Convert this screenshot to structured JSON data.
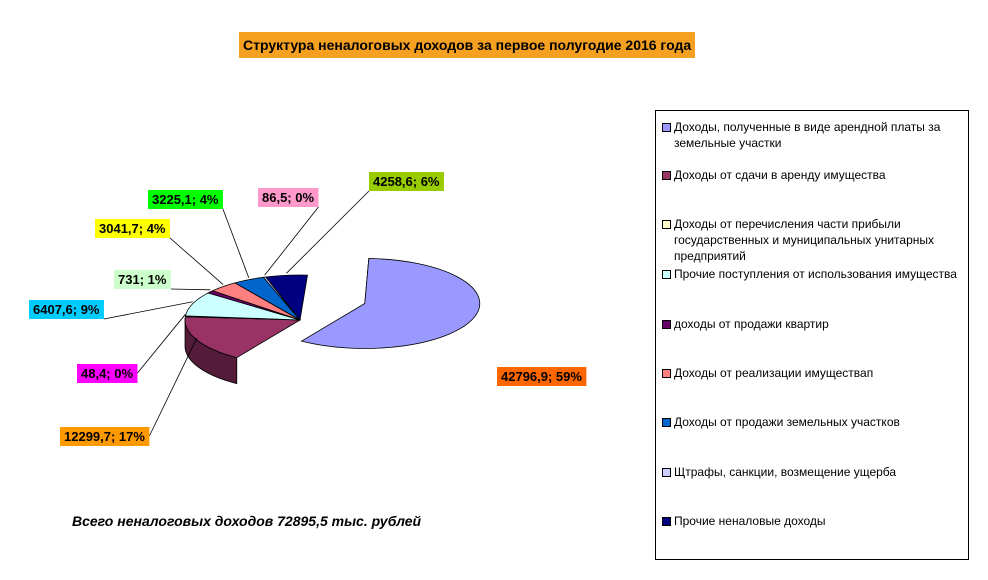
{
  "title": "Структура неналоговых доходов за первое полугодие 2016 года",
  "total_note": "Всего неналоговых доходов 72895,5 тыс. рублей",
  "chart_data": {
    "type": "pie",
    "title": "Структура неналоговых доходов за первое полугодие 2016 года",
    "slices": [
      {
        "name": "Доходы, полученные в виде арендной платы за земельные участки",
        "value": 42796.9,
        "percent": 59,
        "label": "42796,9; 59%",
        "color": "#9999ff",
        "label_bg": "#ff6600"
      },
      {
        "name": "Доходы от сдачи в аренду имущества",
        "value": 12299.7,
        "percent": 17,
        "label": "12299,7; 17%",
        "color": "#993366",
        "label_bg": "#ff9900"
      },
      {
        "name": "Доходы от перечисления части прибыли государственных и муниципальных унитарных предприятий",
        "value": 48.4,
        "percent": 0,
        "label": "48,4; 0%",
        "color": "#ffffcc",
        "label_bg": "#ff00ff"
      },
      {
        "name": "Прочие поступления от использования имущества",
        "value": 6407.6,
        "percent": 9,
        "label": "6407,6; 9%",
        "color": "#ccffff",
        "label_bg": "#00ccff"
      },
      {
        "name": "доходы от продажи квартир",
        "value": 731,
        "percent": 1,
        "label": "731; 1%",
        "color": "#660066",
        "label_bg": "#ccffcc"
      },
      {
        "name": "Доходы от реализации имуществап",
        "value": 3041.7,
        "percent": 4,
        "label": "3041,7; 4%",
        "color": "#ff8080",
        "label_bg": "#ffff00"
      },
      {
        "name": "Доходы от продажи земельных участков",
        "value": 3225.1,
        "percent": 4,
        "label": "3225,1; 4%",
        "color": "#0066cc",
        "label_bg": "#00ff00"
      },
      {
        "name": "Щтрафы, санкции, возмещение ущерба",
        "value": 86.5,
        "percent": 0,
        "label": "86,5; 0%",
        "color": "#ccccff",
        "label_bg": "#ff99cc"
      },
      {
        "name": "Прочие неналовые доходы",
        "value": 4258.6,
        "percent": 6,
        "label": "4258,6; 6%",
        "color": "#000080",
        "label_bg": "#99cc00"
      }
    ],
    "legend_position": "right",
    "exploded_slice": "Доходы, полученные в виде арендной платы за земельные участки"
  }
}
